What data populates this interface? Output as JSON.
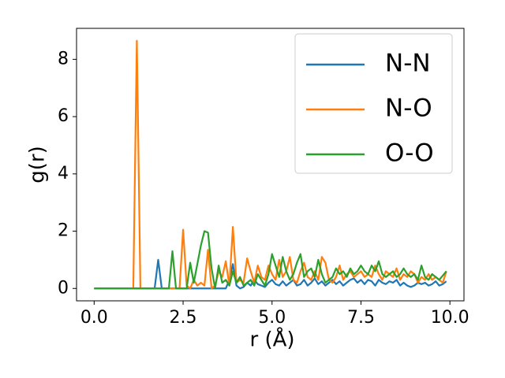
{
  "chart_data": {
    "type": "line",
    "xlabel": "r (Å)",
    "ylabel": "g(r)",
    "x": [
      0,
      0.1,
      0.2,
      0.3,
      0.4,
      0.5,
      0.6,
      0.7,
      0.8,
      0.9,
      1,
      1.1,
      1.2,
      1.3,
      1.4,
      1.5,
      1.6,
      1.7,
      1.8,
      1.9,
      2,
      2.1,
      2.2,
      2.3,
      2.4,
      2.5,
      2.6,
      2.7,
      2.8,
      2.9,
      3,
      3.1,
      3.2,
      3.3,
      3.4,
      3.5,
      3.6,
      3.7,
      3.8,
      3.9,
      4,
      4.1,
      4.2,
      4.3,
      4.4,
      4.5,
      4.6,
      4.7,
      4.8,
      4.9,
      5,
      5.1,
      5.2,
      5.3,
      5.4,
      5.5,
      5.6,
      5.7,
      5.8,
      5.9,
      6,
      6.1,
      6.2,
      6.3,
      6.4,
      6.5,
      6.6,
      6.7,
      6.8,
      6.9,
      7,
      7.1,
      7.2,
      7.3,
      7.4,
      7.5,
      7.6,
      7.7,
      7.8,
      7.9,
      8,
      8.1,
      8.2,
      8.3,
      8.4,
      8.5,
      8.6,
      8.7,
      8.8,
      8.9,
      9,
      9.1,
      9.2,
      9.3,
      9.4,
      9.5,
      9.6,
      9.7,
      9.8,
      9.9
    ],
    "series": [
      {
        "name": "N-N",
        "color": "#1f77b4",
        "values": [
          0,
          0,
          0,
          0,
          0,
          0,
          0,
          0,
          0,
          0,
          0,
          0,
          0,
          0,
          0,
          0,
          0,
          0,
          1.0,
          0,
          0,
          0,
          0,
          0,
          0,
          0,
          0,
          0,
          0,
          0,
          0,
          0,
          0,
          0,
          0,
          0,
          0,
          0,
          0.3,
          0.85,
          0.1,
          0,
          0.05,
          0.2,
          0.1,
          0.3,
          0.15,
          0.1,
          0.05,
          0.2,
          0.3,
          0.15,
          0.1,
          0.25,
          0.1,
          0.2,
          0.3,
          0.1,
          0.15,
          0.3,
          0.1,
          0.2,
          0.35,
          0.15,
          0.25,
          0.1,
          0.2,
          0.3,
          0.15,
          0.25,
          0.1,
          0.2,
          0.3,
          0.35,
          0.2,
          0.3,
          0.15,
          0.3,
          0.25,
          0.1,
          0.3,
          0.2,
          0.15,
          0.25,
          0.2,
          0.3,
          0.1,
          0.2,
          0.1,
          0.05,
          0.1,
          0.2,
          0.15,
          0.2,
          0.1,
          0.15,
          0.25,
          0.1,
          0.15,
          0.25
        ]
      },
      {
        "name": "N-O",
        "color": "#ff7f0e",
        "values": [
          0,
          0,
          0,
          0,
          0,
          0,
          0,
          0,
          0,
          0,
          0,
          0,
          8.65,
          0,
          0,
          0,
          0,
          0,
          0,
          0,
          0,
          0,
          0,
          0,
          0,
          2.05,
          0.1,
          0,
          0.3,
          0.1,
          0.2,
          0.1,
          1.35,
          0,
          0.1,
          0.6,
          0.4,
          0.95,
          0.1,
          2.15,
          0.2,
          0.3,
          0.2,
          1.05,
          0.6,
          0.2,
          0.8,
          0.4,
          0.3,
          0.8,
          0.5,
          0.3,
          1.0,
          0.4,
          0.6,
          1.1,
          0.3,
          0.2,
          0.6,
          0.9,
          0.4,
          0.3,
          0.6,
          0.3,
          1.1,
          0.9,
          0.3,
          0.2,
          0.4,
          0.8,
          0.3,
          0.5,
          0.6,
          0.4,
          0.5,
          0.6,
          0.4,
          0.5,
          0.4,
          0.8,
          0.5,
          0.3,
          0.6,
          0.5,
          0.4,
          0.7,
          0.3,
          0.5,
          0.4,
          0.6,
          0.5,
          0.2,
          0.4,
          0.3,
          0.5,
          0.3,
          0.4,
          0.3,
          0.2,
          0.6
        ]
      },
      {
        "name": "O-O",
        "color": "#2ca02c",
        "values": [
          0,
          0,
          0,
          0,
          0,
          0,
          0,
          0,
          0,
          0,
          0,
          0,
          0,
          0,
          0,
          0,
          0,
          0,
          0,
          0,
          0,
          0,
          1.3,
          0,
          0,
          0,
          0,
          0.9,
          0.2,
          0.85,
          1.5,
          2.0,
          1.95,
          0.7,
          0,
          0.8,
          0.2,
          0.3,
          0.1,
          0.6,
          0.2,
          0.4,
          0.1,
          0.2,
          0.3,
          0.1,
          0.5,
          0.3,
          0.1,
          0.5,
          1.2,
          0.8,
          0.4,
          1.1,
          0.6,
          0.3,
          0.5,
          0.9,
          1.2,
          0.4,
          0.6,
          0.7,
          0.4,
          1.0,
          0.5,
          0.2,
          0.3,
          0.4,
          0.7,
          0.5,
          0.6,
          0.4,
          0.7,
          0.5,
          0.6,
          0.8,
          0.6,
          0.5,
          0.8,
          0.6,
          0.95,
          0.5,
          0.4,
          0.5,
          0.6,
          0.4,
          0.5,
          0.7,
          0.5,
          0.4,
          0.5,
          0.3,
          0.8,
          0.4,
          0.3,
          0.5,
          0.4,
          0.3,
          0.45,
          0.6
        ]
      }
    ],
    "xlim": [
      -0.495,
      10.395
    ],
    "xticks": [
      {
        "value": 0,
        "label": "0.0"
      },
      2.5,
      {
        "value": 5,
        "label": "5.0"
      },
      7.5,
      {
        "value": 10,
        "label": "10.0"
      }
    ],
    "ylim": [
      -0.4325,
      9.0825
    ],
    "yticks": [
      0,
      2,
      4,
      6,
      8
    ],
    "legend": "upper right"
  }
}
